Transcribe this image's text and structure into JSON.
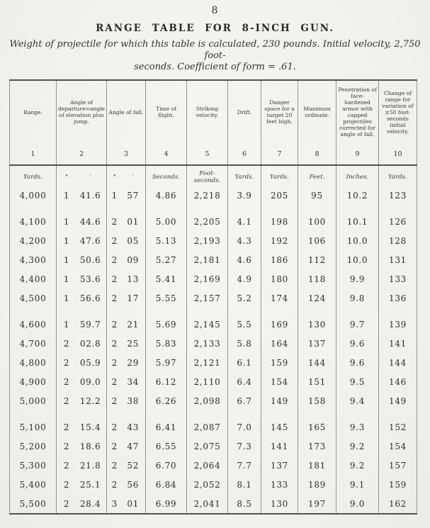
{
  "page": {
    "number": "8",
    "title": "RANGE TABLE FOR 8-INCH GUN.",
    "subtitle_line1": "Weight of projectile for which this table is calculated, 230 pounds.  Initial velocity, 2,750 foot-",
    "subtitle_line2": "seconds.  Coefficient of form = .61.",
    "paper_color": "#f3f2ee",
    "ink_color": "#2f2d28"
  },
  "table": {
    "headers": [
      {
        "num": "1",
        "label": "Range."
      },
      {
        "num": "2",
        "label": "Angle of departure=angle of elevation plus jump."
      },
      {
        "num": "3",
        "label": "Angle of fall."
      },
      {
        "num": "4",
        "label": "Time of flight."
      },
      {
        "num": "5",
        "label": "Striking velocity."
      },
      {
        "num": "6",
        "label": "Drift."
      },
      {
        "num": "7",
        "label": "Danger space for a target 20 feet high."
      },
      {
        "num": "8",
        "label": "Maximum ordinate."
      },
      {
        "num": "9",
        "label": "Penetration of face-hardened armor with capped projectiles corrected for angle of fall."
      },
      {
        "num": "10",
        "label": "Change of range for variation of ±50 foot-seconds initial velocity."
      }
    ],
    "units": [
      "Yards.",
      "°",
      "′",
      "°",
      "′",
      "Seconds.",
      "Foot-seconds.",
      "Yards.",
      "Yards.",
      "Feet.",
      "Inches.",
      "Yards."
    ],
    "rows": [
      {
        "gap": false,
        "c": [
          "4,000",
          "1",
          "41.6",
          "1",
          "57",
          "4.86",
          "2,218",
          "3.9",
          "205",
          "95",
          "10.2",
          "123"
        ]
      },
      {
        "gap": true,
        "c": [
          "4,100",
          "1",
          "44.6",
          "2",
          "01",
          "5.00",
          "2,205",
          "4.1",
          "198",
          "100",
          "10.1",
          "126"
        ]
      },
      {
        "gap": false,
        "c": [
          "4,200",
          "1",
          "47.6",
          "2",
          "05",
          "5.13",
          "2,193",
          "4.3",
          "192",
          "106",
          "10.0",
          "128"
        ]
      },
      {
        "gap": false,
        "c": [
          "4,300",
          "1",
          "50.6",
          "2",
          "09",
          "5.27",
          "2,181",
          "4.6",
          "186",
          "112",
          "10.0",
          "131"
        ]
      },
      {
        "gap": false,
        "c": [
          "4,400",
          "1",
          "53.6",
          "2",
          "13",
          "5.41",
          "2,169",
          "4.9",
          "180",
          "118",
          "9.9",
          "133"
        ]
      },
      {
        "gap": false,
        "c": [
          "4,500",
          "1",
          "56.6",
          "2",
          "17",
          "5.55",
          "2,157",
          "5.2",
          "174",
          "124",
          "9.8",
          "136"
        ]
      },
      {
        "gap": true,
        "c": [
          "4,600",
          "1",
          "59.7",
          "2",
          "21",
          "5.69",
          "2,145",
          "5.5",
          "169",
          "130",
          "9.7",
          "139"
        ]
      },
      {
        "gap": false,
        "c": [
          "4,700",
          "2",
          "02.8",
          "2",
          "25",
          "5.83",
          "2,133",
          "5.8",
          "164",
          "137",
          "9.6",
          "141"
        ]
      },
      {
        "gap": false,
        "c": [
          "4,800",
          "2",
          "05.9",
          "2",
          "29",
          "5.97",
          "2,121",
          "6.1",
          "159",
          "144",
          "9.6",
          "144"
        ]
      },
      {
        "gap": false,
        "c": [
          "4,900",
          "2",
          "09.0",
          "2",
          "34",
          "6.12",
          "2,110",
          "6.4",
          "154",
          "151",
          "9.5",
          "146"
        ]
      },
      {
        "gap": false,
        "c": [
          "5,000",
          "2",
          "12.2",
          "2",
          "38",
          "6.26",
          "2,098",
          "6.7",
          "149",
          "158",
          "9.4",
          "149"
        ]
      },
      {
        "gap": true,
        "c": [
          "5,100",
          "2",
          "15.4",
          "2",
          "43",
          "6.41",
          "2,087",
          "7.0",
          "145",
          "165",
          "9.3",
          "152"
        ]
      },
      {
        "gap": false,
        "c": [
          "5,200",
          "2",
          "18.6",
          "2",
          "47",
          "6.55",
          "2,075",
          "7.3",
          "141",
          "173",
          "9.2",
          "154"
        ]
      },
      {
        "gap": false,
        "c": [
          "5,300",
          "2",
          "21.8",
          "2",
          "52",
          "6.70",
          "2,064",
          "7.7",
          "137",
          "181",
          "9.2",
          "157"
        ]
      },
      {
        "gap": false,
        "c": [
          "5,400",
          "2",
          "25.1",
          "2",
          "56",
          "6.84",
          "2,052",
          "8.1",
          "133",
          "189",
          "9.1",
          "159"
        ]
      },
      {
        "gap": false,
        "c": [
          "5,500",
          "2",
          "28.4",
          "3",
          "01",
          "6.99",
          "2,041",
          "8.5",
          "130",
          "197",
          "9.0",
          "162"
        ]
      }
    ]
  }
}
